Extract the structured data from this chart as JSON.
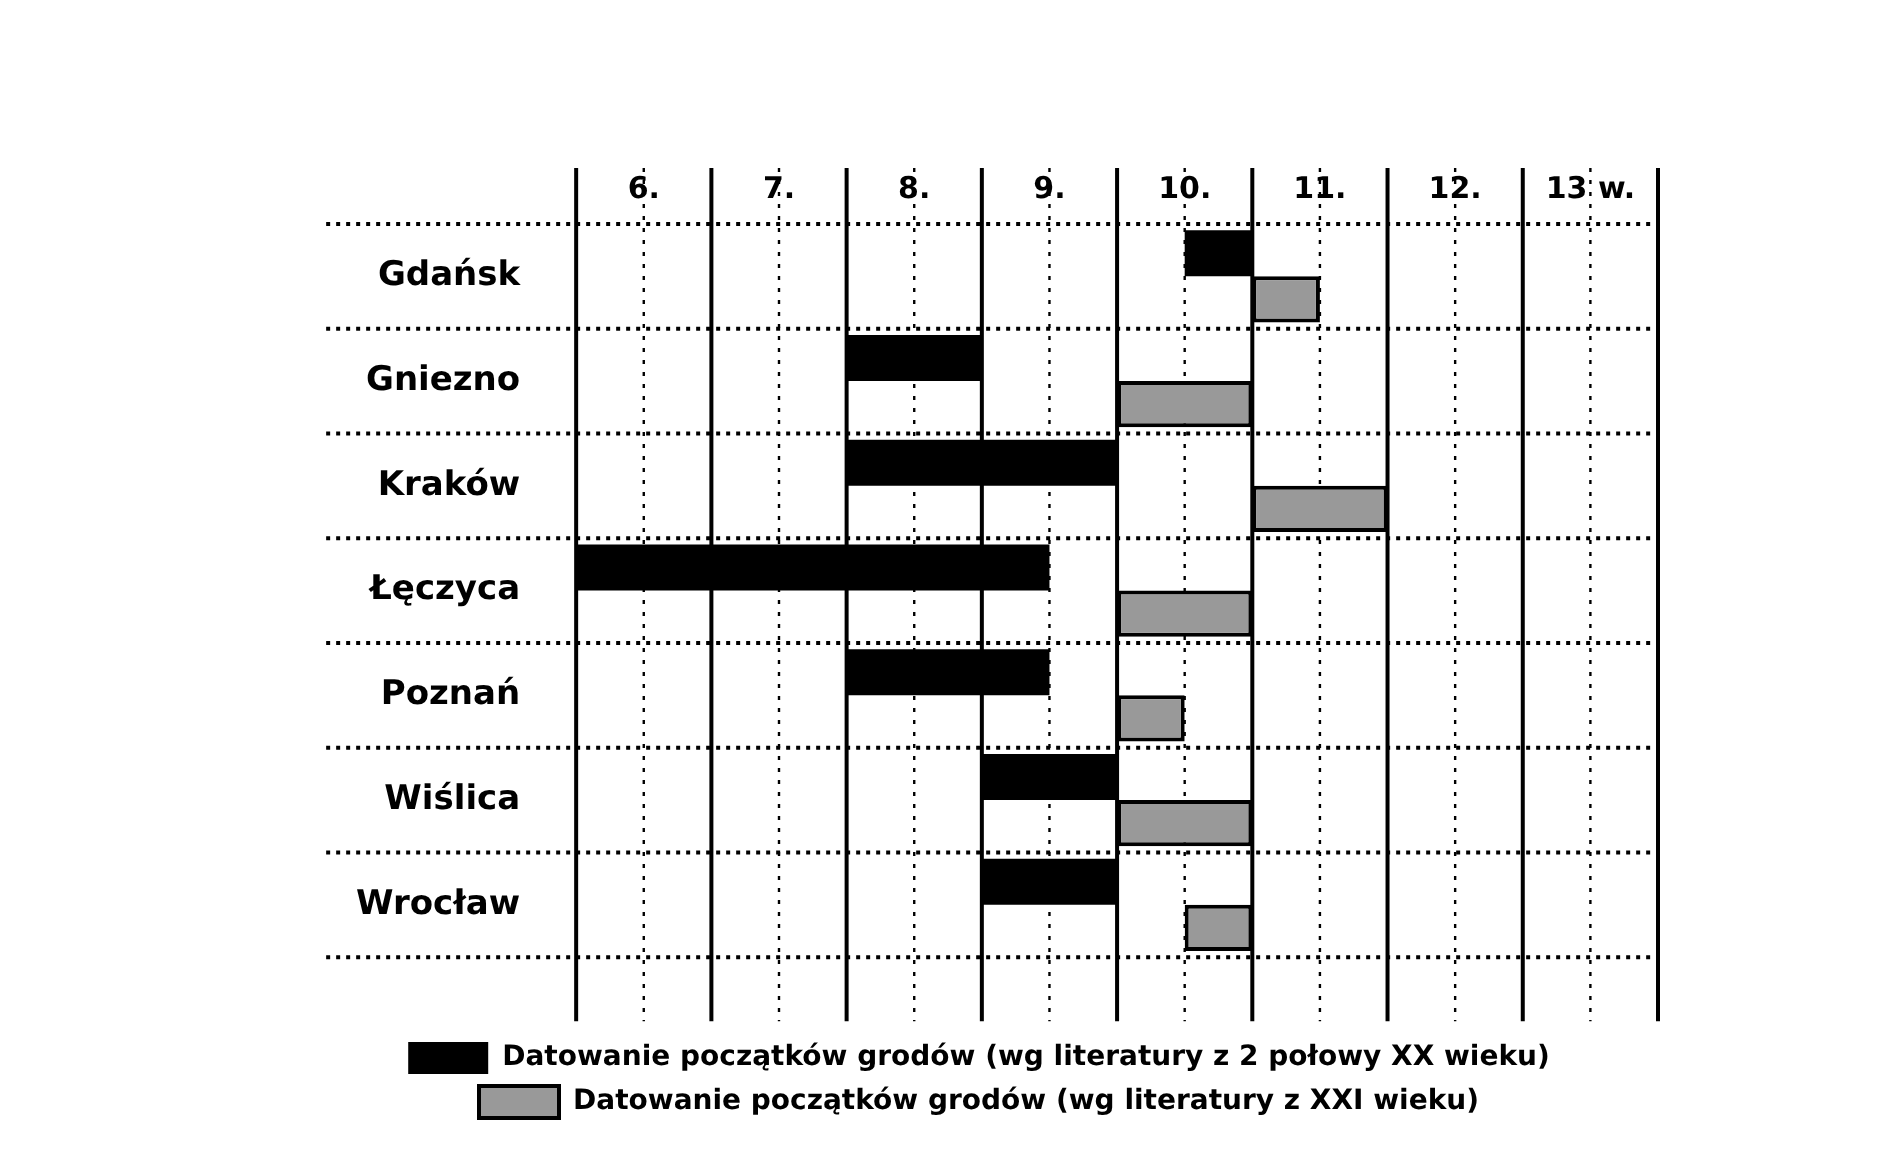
{
  "chart_data": {
    "type": "bar",
    "orientation": "horizontal",
    "categories": [
      "Gdańsk",
      "Gniezno",
      "Kraków",
      "Łęczyca",
      "Poznań",
      "Wiślica",
      "Wrocław"
    ],
    "series": [
      {
        "name": "Datowanie początków grodów (wg literatury z 2 połowy XX wieku)",
        "color": "#000000",
        "base": [
          10.0,
          7.5,
          7.5,
          5.5,
          7.5,
          8.5,
          8.5
        ],
        "values": [
          0.5,
          1.0,
          2.0,
          3.5,
          1.5,
          1.0,
          1.0
        ]
      },
      {
        "name": "Datowanie początków grodów (wg literatury z XXI wieku)",
        "color": "#999999",
        "base": [
          10.5,
          9.5,
          10.5,
          9.5,
          9.5,
          9.5,
          10.0
        ],
        "values": [
          0.5,
          1.0,
          1.0,
          1.0,
          0.5,
          1.0,
          0.5
        ]
      }
    ],
    "xlim": [
      5.5,
      13.5
    ],
    "xticks": [
      {
        "value": 5.5,
        "label": null
      },
      {
        "value": 6,
        "label": "6."
      },
      {
        "value": 6.5,
        "label": null
      },
      {
        "value": 7,
        "label": "7."
      },
      {
        "value": 7.5,
        "label": null
      },
      {
        "value": 8,
        "label": "8."
      },
      {
        "value": 8.5,
        "label": null
      },
      {
        "value": 9,
        "label": "9."
      },
      {
        "value": 9.5,
        "label": null
      },
      {
        "value": 10,
        "label": "10."
      },
      {
        "value": 10.5,
        "label": null
      },
      {
        "value": 11,
        "label": "11."
      },
      {
        "value": 11.5,
        "label": null
      },
      {
        "value": 12,
        "label": "12."
      },
      {
        "value": 12.5,
        "label": null
      },
      {
        "value": 13,
        "label": "13 w."
      },
      {
        "value": 13.5,
        "label": null
      }
    ],
    "grid": true,
    "legend": "bottom"
  }
}
